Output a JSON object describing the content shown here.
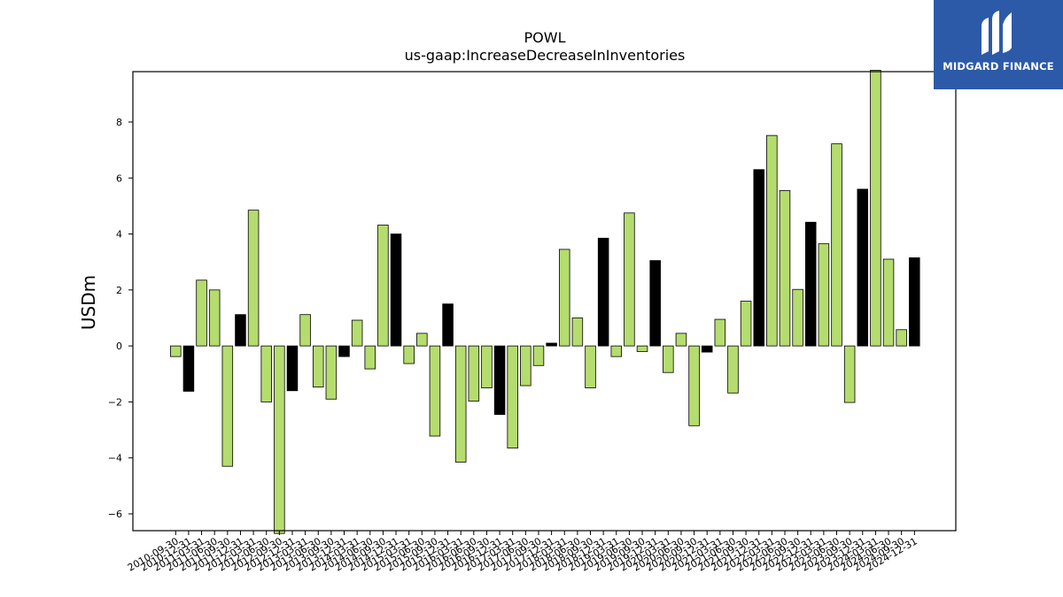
{
  "chart_data": {
    "type": "bar",
    "title": "POWL",
    "subtitle": "us-gaap:IncreaseDecreaseInInventories",
    "xlabel": "",
    "ylabel": "USDm",
    "ylim": [
      -6.6,
      9.8
    ],
    "yticks": [
      -6,
      -4,
      -2,
      0,
      2,
      4,
      6,
      8
    ],
    "grid": false,
    "categories": [
      "2010-09-30",
      "2010-12-31",
      "2011-03-31",
      "2011-06-30",
      "2011-09-30",
      "2011-12-31",
      "2012-03-31",
      "2012-06-30",
      "2012-09-30",
      "2012-12-31",
      "2013-03-31",
      "2013-06-30",
      "2013-09-30",
      "2013-12-31",
      "2014-03-31",
      "2014-06-30",
      "2014-09-30",
      "2014-12-31",
      "2015-03-31",
      "2015-06-30",
      "2015-09-30",
      "2015-12-31",
      "2016-03-31",
      "2016-06-30",
      "2016-09-30",
      "2016-12-31",
      "2017-03-31",
      "2017-06-30",
      "2017-09-30",
      "2017-12-31",
      "2018-03-31",
      "2018-06-30",
      "2018-09-30",
      "2018-12-31",
      "2019-03-31",
      "2019-06-30",
      "2019-09-30",
      "2019-12-31",
      "2020-03-31",
      "2020-06-30",
      "2020-09-30",
      "2020-12-31",
      "2021-03-31",
      "2021-06-30",
      "2021-09-30",
      "2021-12-31",
      "2022-03-31",
      "2022-06-30",
      "2022-09-30",
      "2022-12-31",
      "2023-03-31",
      "2023-06-30",
      "2023-09-30",
      "2023-12-31",
      "2024-03-31",
      "2024-06-30",
      "2024-09-30",
      "2024-12-31"
    ],
    "values": [
      -0.38,
      -1.62,
      2.35,
      2.0,
      -4.3,
      1.12,
      4.85,
      -2.0,
      -6.7,
      -1.6,
      1.12,
      -1.47,
      -1.9,
      -0.38,
      0.92,
      -0.82,
      4.32,
      4.0,
      -0.63,
      0.45,
      -3.22,
      1.5,
      -4.15,
      -1.97,
      -1.5,
      -2.45,
      -3.65,
      -1.42,
      -0.7,
      0.1,
      3.45,
      1.0,
      -1.5,
      3.85,
      -0.38,
      4.75,
      -0.2,
      3.05,
      -0.95,
      0.45,
      -2.85,
      -0.22,
      0.95,
      -1.68,
      1.6,
      6.3,
      7.52,
      5.55,
      2.02,
      4.42,
      3.65,
      7.22,
      -2.02,
      5.6,
      9.85,
      3.1,
      0.58,
      3.15
    ],
    "bar_colors": {
      "green": "#b5dc6e",
      "black": "#000000"
    },
    "black_bars": [
      1,
      5,
      9,
      13,
      17,
      21,
      25,
      29,
      33,
      37,
      41,
      45,
      49,
      53,
      57
    ]
  },
  "logo": {
    "text": "MIDGARD FINANCE",
    "background": "#2c5aa8"
  }
}
